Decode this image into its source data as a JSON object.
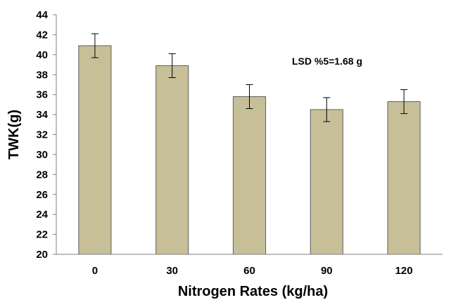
{
  "chart_data": {
    "type": "bar",
    "categories": [
      "0",
      "30",
      "60",
      "90",
      "120"
    ],
    "values": [
      40.9,
      38.9,
      35.8,
      34.5,
      35.3
    ],
    "error": [
      1.2,
      1.2,
      1.2,
      1.2,
      1.2
    ],
    "xlabel": "Nitrogen Rates (kg/ha)",
    "ylabel": "TWK(g)",
    "ylim": [
      20,
      44
    ],
    "yticks": [
      20,
      22,
      24,
      26,
      28,
      30,
      32,
      34,
      36,
      38,
      40,
      42,
      44
    ],
    "annotation": "LSD %5=1.68 g",
    "grid": false,
    "legend": "none",
    "colors": {
      "bar_fill": "#c6bf98",
      "bar_stroke": "#5f5f5f",
      "axis": "#808080",
      "error_bar": "#000000",
      "text": "#000000"
    }
  }
}
